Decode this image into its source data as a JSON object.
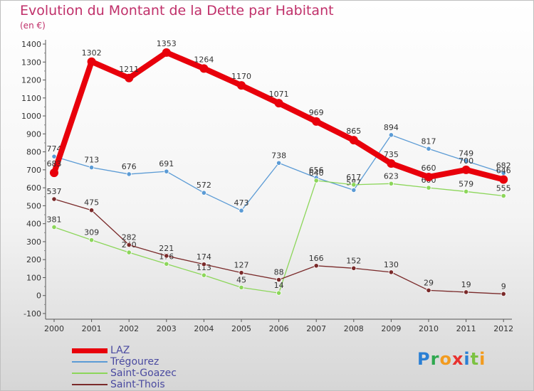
{
  "page": {
    "title": "Evolution du Montant de la Dette par Habitant",
    "subtitle": "(en €)",
    "logo_letters": [
      {
        "ch": "P",
        "color": "#2a7fd4"
      },
      {
        "ch": "r",
        "color": "#2fa84f"
      },
      {
        "ch": "o",
        "color": "#f29b1f"
      },
      {
        "ch": "x",
        "color": "#e8312f"
      },
      {
        "ch": "i",
        "color": "#2a7fd4"
      },
      {
        "ch": "t",
        "color": "#7cc242"
      },
      {
        "ch": "i",
        "color": "#f29b1f"
      }
    ]
  },
  "chart_data": {
    "type": "line",
    "title": "Evolution du Montant de la Dette par Habitant",
    "subtitle": "(en €)",
    "xlabel": "",
    "ylabel": "",
    "x": [
      "2000",
      "2001",
      "2002",
      "2003",
      "2004",
      "2005",
      "2006",
      "2007",
      "2008",
      "2009",
      "2010",
      "2011",
      "2012"
    ],
    "ylim": [
      -100,
      1400
    ],
    "yticks": [
      -100,
      0,
      100,
      200,
      300,
      400,
      500,
      600,
      700,
      800,
      900,
      1000,
      1100,
      1200,
      1300,
      1400
    ],
    "grid": false,
    "legend_position": "bottom-left",
    "series": [
      {
        "name": "LAZ",
        "color": "#e8000b",
        "values": [
          683,
          1302,
          1211,
          1353,
          1264,
          1170,
          1071,
          969,
          865,
          735,
          660,
          700,
          646
        ]
      },
      {
        "name": "Trégourez",
        "color": "#5b9bd5",
        "values": [
          774,
          713,
          676,
          691,
          572,
          473,
          738,
          656,
          587,
          894,
          817,
          749,
          682
        ]
      },
      {
        "name": "Saint-Goazec",
        "color": "#8cd65a",
        "values": [
          381,
          309,
          240,
          176,
          113,
          45,
          14,
          640,
          617,
          623,
          600,
          579,
          555
        ]
      },
      {
        "name": "Saint-Thois",
        "color": "#7a2a2a",
        "values": [
          537,
          475,
          282,
          221,
          174,
          127,
          88,
          166,
          152,
          130,
          29,
          19,
          9
        ]
      }
    ]
  }
}
